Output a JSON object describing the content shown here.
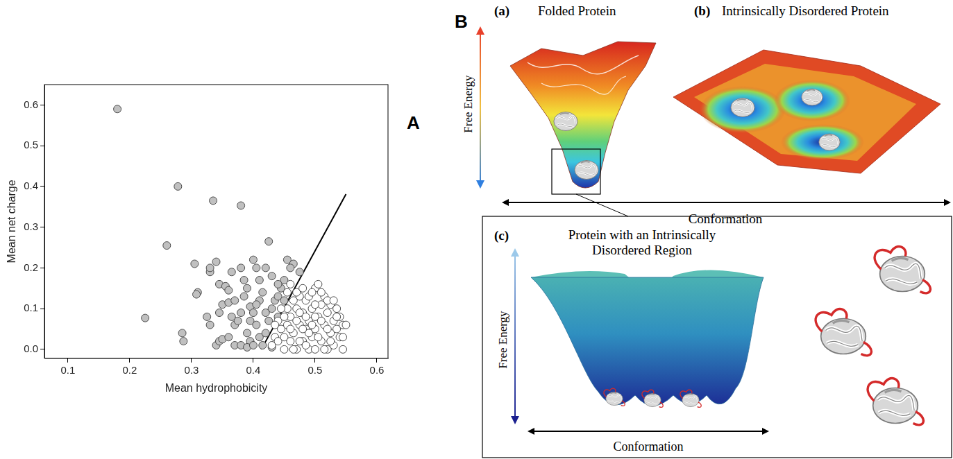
{
  "chart_data": {
    "type": "scatter",
    "panel_label": "A",
    "x_label": "Mean hydrophobicity",
    "y_label": "Mean net charge",
    "xlim": [
      0.062,
      0.618
    ],
    "xticks": [
      0.1,
      0.2,
      0.3,
      0.4,
      0.5,
      0.6
    ],
    "ylim": [
      -0.022,
      0.65
    ],
    "yticks": [
      {
        "value": 0,
        "label": "0.0"
      },
      0.1,
      0.2,
      0.3,
      0.4,
      0.5,
      0.6
    ],
    "grid": false,
    "series": [
      {
        "type": "line",
        "color": "#000000",
        "x": [
          0.413,
          0.55
        ],
        "values": [
          0,
          0.381
        ]
      },
      {
        "color": "#c0c0c0",
        "marker": "circle",
        "x": [
          0.18,
          0.278,
          0.225,
          0.26,
          0.335,
          0.38,
          0.305,
          0.285,
          0.287,
          0.31,
          0.308,
          0.325,
          0.33,
          0.33,
          0.33,
          0.34,
          0.345,
          0.355,
          0.36,
          0.365,
          0.38,
          0.35,
          0.36,
          0.34,
          0.345,
          0.35,
          0.36,
          0.37,
          0.37,
          0.375,
          0.38,
          0.385,
          0.39,
          0.4,
          0.405,
          0.41,
          0.395,
          0.4,
          0.405,
          0.41,
          0.415,
          0.42,
          0.425,
          0.43,
          0.435,
          0.44,
          0.445,
          0.45,
          0.455,
          0.465,
          0.475,
          0.46,
          0.38,
          0.39,
          0.395,
          0.41,
          0.415,
          0.42,
          0.425,
          0.43,
          0.44,
          0.45,
          0.37,
          0.385,
          0.395,
          0.405,
          0.42,
          0.345,
          0.365,
          0.39,
          0.4,
          0.43,
          0.44
        ],
        "values": [
          0.59,
          0.4,
          0.077,
          0.255,
          0.365,
          0.353,
          0.21,
          0.04,
          0.02,
          0.14,
          0.135,
          0.08,
          0.06,
          0.19,
          0.2,
          0.215,
          0.16,
          0.155,
          0.145,
          0.19,
          0.2,
          0.11,
          0.115,
          0.01,
          0.02,
          0.025,
          0.03,
          0.01,
          0.06,
          0.07,
          0.09,
          0.13,
          0.15,
          0.22,
          0.2,
          0.17,
          0.105,
          0.09,
          0.06,
          0.12,
          0.14,
          0.2,
          0.265,
          0.18,
          0.12,
          0.13,
          0.15,
          0.17,
          0.22,
          0.21,
          0.19,
          0.2,
          0.01,
          0.04,
          0.02,
          0.03,
          0.01,
          0.04,
          0.07,
          0.1,
          0.08,
          0.12,
          0.12,
          0.17,
          0.07,
          0.11,
          0.09,
          0.09,
          0.08,
          0.005,
          0.01,
          0.005,
          0.16
        ]
      },
      {
        "color": "#ffffff",
        "marker": "circle",
        "x": [
          0.43,
          0.435,
          0.44,
          0.445,
          0.45,
          0.45,
          0.455,
          0.46,
          0.46,
          0.465,
          0.47,
          0.47,
          0.475,
          0.475,
          0.48,
          0.48,
          0.485,
          0.485,
          0.49,
          0.49,
          0.495,
          0.495,
          0.5,
          0.5,
          0.5,
          0.505,
          0.505,
          0.51,
          0.51,
          0.515,
          0.515,
          0.52,
          0.52,
          0.525,
          0.525,
          0.53,
          0.53,
          0.535,
          0.535,
          0.54,
          0.54,
          0.545,
          0.545,
          0.55,
          0.465,
          0.455,
          0.44,
          0.445,
          0.47,
          0.48,
          0.49,
          0.5,
          0.51,
          0.52,
          0.455,
          0.46,
          0.465,
          0.475,
          0.485,
          0.495,
          0.505,
          0.515,
          0.525,
          0.53,
          0.49,
          0.48,
          0.47,
          0.46,
          0.5,
          0.51,
          0.52,
          0.45,
          0.435,
          0.545,
          0.535,
          0.475,
          0.485,
          0.495
        ],
        "values": [
          0.01,
          0.03,
          0.02,
          0.05,
          0.0,
          0.03,
          0.06,
          0.02,
          0.08,
          0.04,
          0.0,
          0.1,
          0.06,
          0.13,
          0.02,
          0.09,
          0.05,
          0.12,
          0.0,
          0.07,
          0.03,
          0.1,
          0.15,
          0.05,
          0.0,
          0.08,
          0.16,
          0.02,
          0.11,
          0.06,
          0.13,
          0.0,
          0.09,
          0.04,
          0.11,
          0.07,
          0.01,
          0.1,
          0.05,
          0.03,
          0.08,
          0.0,
          0.06,
          0.06,
          0.12,
          0.1,
          0.07,
          0.1,
          0.14,
          0.15,
          0.13,
          0.11,
          0.14,
          0.12,
          0.14,
          0.16,
          0.0,
          0.02,
          0.01,
          0.06,
          0.03,
          0.0,
          0.02,
          0.12,
          0.04,
          0.05,
          0.07,
          0.05,
          0.08,
          0.07,
          0.05,
          0.08,
          0.06,
          0.03,
          0.08,
          0.09,
          0.08,
          0.14
        ]
      }
    ]
  },
  "diagram": {
    "panel_label": "B",
    "panels": [
      {
        "label": "(a)",
        "title": "Folded Protein"
      },
      {
        "label": "(b)",
        "title": "Intrinsically Disordered Protein"
      },
      {
        "label": "(c)",
        "title": "Protein with an Intrinsically Disordered Region"
      }
    ],
    "y_axis_label": "Free Energy",
    "x_axis_label": "Conformation"
  }
}
